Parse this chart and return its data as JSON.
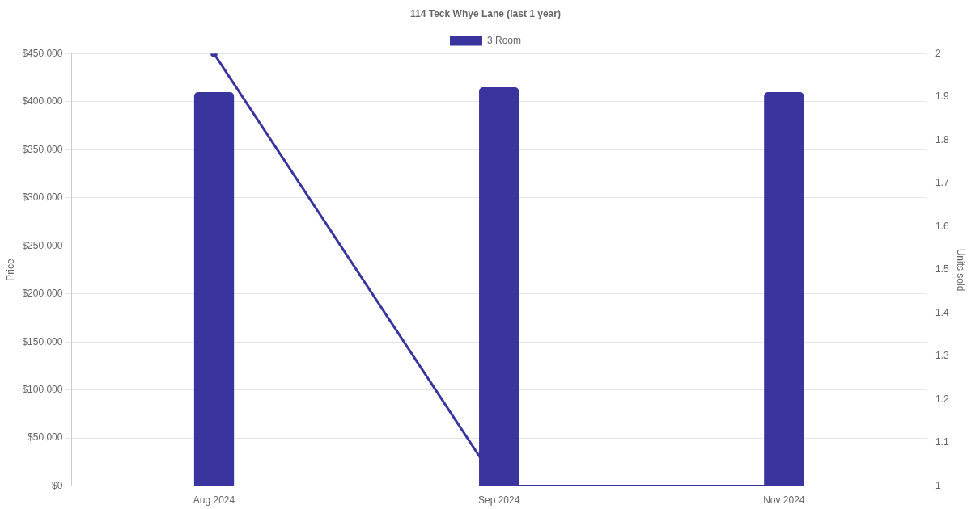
{
  "chart_data": {
    "type": "bar",
    "title": "114 Teck Whye Lane (last 1 year)",
    "ylabel": "Price",
    "y2label": "Units sold",
    "categories": [
      "Aug 2024",
      "Sep 2024",
      "Nov 2024"
    ],
    "series": [
      {
        "name": "3 Room",
        "color": "#3a349e",
        "values": [
          410000,
          415000,
          410000
        ]
      },
      {
        "type": "line",
        "axis": "y2",
        "color": "#3a349e",
        "values": [
          2,
          1,
          1
        ]
      }
    ],
    "ylim": [
      0,
      450000
    ],
    "yticks": [
      {
        "value": 0,
        "label": "$0"
      },
      {
        "value": 50000,
        "label": "$50,000"
      },
      {
        "value": 100000,
        "label": "$100,000"
      },
      {
        "value": 150000,
        "label": "$150,000"
      },
      {
        "value": 200000,
        "label": "$200,000"
      },
      {
        "value": 250000,
        "label": "$250,000"
      },
      {
        "value": 300000,
        "label": "$300,000"
      },
      {
        "value": 350000,
        "label": "$350,000"
      },
      {
        "value": 400000,
        "label": "$400,000"
      },
      {
        "value": 450000,
        "label": "$450,000"
      }
    ],
    "y2lim": [
      1,
      2
    ],
    "y2ticks": [
      1,
      1.1,
      1.2,
      1.3,
      1.4,
      1.5,
      1.6,
      1.7,
      1.8,
      1.9,
      2
    ],
    "grid": "y",
    "legend": "top",
    "marker": "circle",
    "line_style": "solid"
  }
}
